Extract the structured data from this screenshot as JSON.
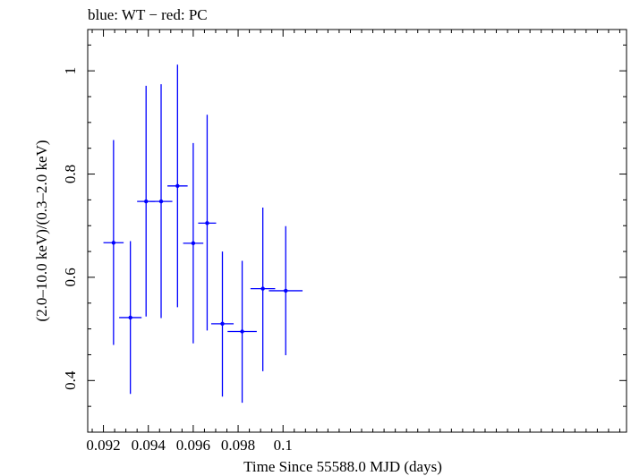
{
  "chart_data": {
    "type": "scatter",
    "title": "blue: WT − red: PC",
    "xlabel": "Time Since 55588.0 MJD (days)",
    "ylabel": "(2.0–10.0 keV)/(0.3–2.0 keV)",
    "xlim": [
      0.0913,
      0.1153
    ],
    "ylim": [
      0.3,
      1.08
    ],
    "x_ticks": [
      0.092,
      0.094,
      0.096,
      0.098,
      0.1
    ],
    "x_tick_labels": [
      "0.092",
      "0.094",
      "0.096",
      "0.098",
      "0.1"
    ],
    "y_ticks": [
      0.4,
      0.6,
      0.8,
      1.0
    ],
    "y_tick_labels": [
      "0.4",
      "0.6",
      "0.8",
      "1"
    ],
    "series": [
      {
        "name": "WT",
        "color": "#0000ff",
        "points": [
          {
            "x": 0.09245,
            "xerr": 0.00045,
            "y": 0.667,
            "ylo": 0.469,
            "yhi": 0.866
          },
          {
            "x": 0.0932,
            "xerr": 0.0005,
            "y": 0.522,
            "ylo": 0.374,
            "yhi": 0.67
          },
          {
            "x": 0.0939,
            "xerr": 0.0004,
            "y": 0.747,
            "ylo": 0.524,
            "yhi": 0.971
          },
          {
            "x": 0.09457,
            "xerr": 0.0005,
            "y": 0.747,
            "ylo": 0.521,
            "yhi": 0.974
          },
          {
            "x": 0.0953,
            "xerr": 0.00045,
            "y": 0.777,
            "ylo": 0.542,
            "yhi": 1.012
          },
          {
            "x": 0.096,
            "xerr": 0.00045,
            "y": 0.666,
            "ylo": 0.472,
            "yhi": 0.86
          },
          {
            "x": 0.09662,
            "xerr": 0.0004,
            "y": 0.705,
            "ylo": 0.497,
            "yhi": 0.915
          },
          {
            "x": 0.0973,
            "xerr": 0.0005,
            "y": 0.51,
            "ylo": 0.369,
            "yhi": 0.65
          },
          {
            "x": 0.09818,
            "xerr": 0.00065,
            "y": 0.495,
            "ylo": 0.357,
            "yhi": 0.632
          },
          {
            "x": 0.0991,
            "xerr": 0.00055,
            "y": 0.578,
            "ylo": 0.418,
            "yhi": 0.735
          },
          {
            "x": 0.10012,
            "xerr": 0.00075,
            "y": 0.574,
            "ylo": 0.449,
            "yhi": 0.699
          }
        ]
      }
    ]
  }
}
